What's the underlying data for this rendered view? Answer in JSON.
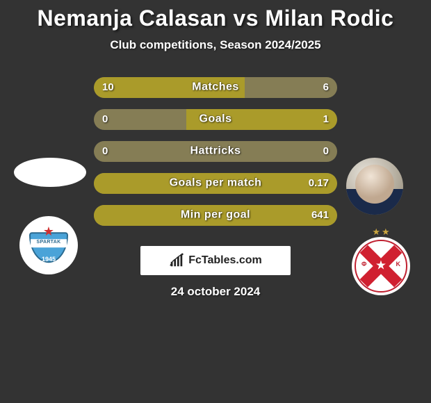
{
  "title": "Nemanja Calasan vs Milan Rodic",
  "subtitle": "Club competitions, Season 2024/2025",
  "date": "24 october 2024",
  "brand": "FcTables.com",
  "colors": {
    "background": "#333333",
    "bar_bg": "#857d55",
    "bar_fill": "#aa9b2a",
    "text": "#ffffff"
  },
  "stats": [
    {
      "label": "Matches",
      "left_val": "10",
      "right_val": "6",
      "left_pct": 62,
      "right_pct": 0
    },
    {
      "label": "Goals",
      "left_val": "0",
      "right_val": "1",
      "left_pct": 0,
      "right_pct": 62
    },
    {
      "label": "Hattricks",
      "left_val": "0",
      "right_val": "0",
      "left_pct": 0,
      "right_pct": 0
    },
    {
      "label": "Goals per match",
      "left_val": "",
      "right_val": "0.17",
      "left_pct": 0,
      "right_pct": 100
    },
    {
      "label": "Min per goal",
      "left_val": "",
      "right_val": "641",
      "left_pct": 0,
      "right_pct": 100
    }
  ],
  "left_crest": {
    "name": "SPARTAK",
    "year": "1945"
  },
  "right_crest": {
    "fk_left": "Φ",
    "fk_right": "K"
  }
}
